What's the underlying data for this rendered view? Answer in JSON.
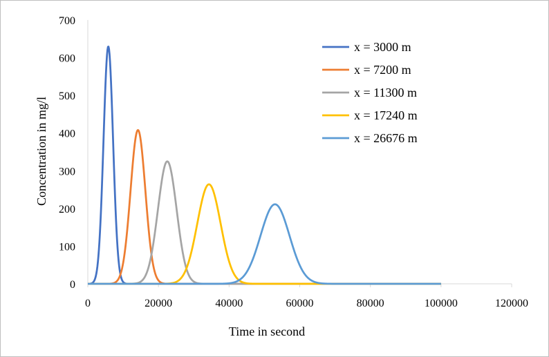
{
  "chart_data": {
    "type": "line",
    "title": "",
    "xlabel": "Time in second",
    "ylabel": "Concentration in mg/l",
    "xlim": [
      0,
      120000
    ],
    "ylim": [
      0,
      700
    ],
    "x_ticks": [
      0,
      20000,
      40000,
      60000,
      80000,
      100000,
      120000
    ],
    "y_ticks": [
      0,
      100,
      200,
      300,
      400,
      500,
      600,
      700
    ],
    "grid": false,
    "legend_position": "top-right",
    "x_range_plotted": [
      0,
      100000
    ],
    "series": [
      {
        "name": "x = 3000 m",
        "color": "#4472C4",
        "peak_x": 5800,
        "peak_y": 630,
        "sigma": 1350
      },
      {
        "name": "x = 7200 m",
        "color": "#ED7D31",
        "peak_x": 14200,
        "peak_y": 408,
        "sigma": 2100
      },
      {
        "name": "x = 11300 m",
        "color": "#A5A5A5",
        "peak_x": 22500,
        "peak_y": 325,
        "sigma": 2650
      },
      {
        "name": "x = 17240 m",
        "color": "#FFC000",
        "peak_x": 34300,
        "peak_y": 264,
        "sigma": 3300
      },
      {
        "name": "x = 26676 m",
        "color": "#5B9BD5",
        "peak_x": 53000,
        "peak_y": 211,
        "sigma": 4100
      }
    ]
  }
}
